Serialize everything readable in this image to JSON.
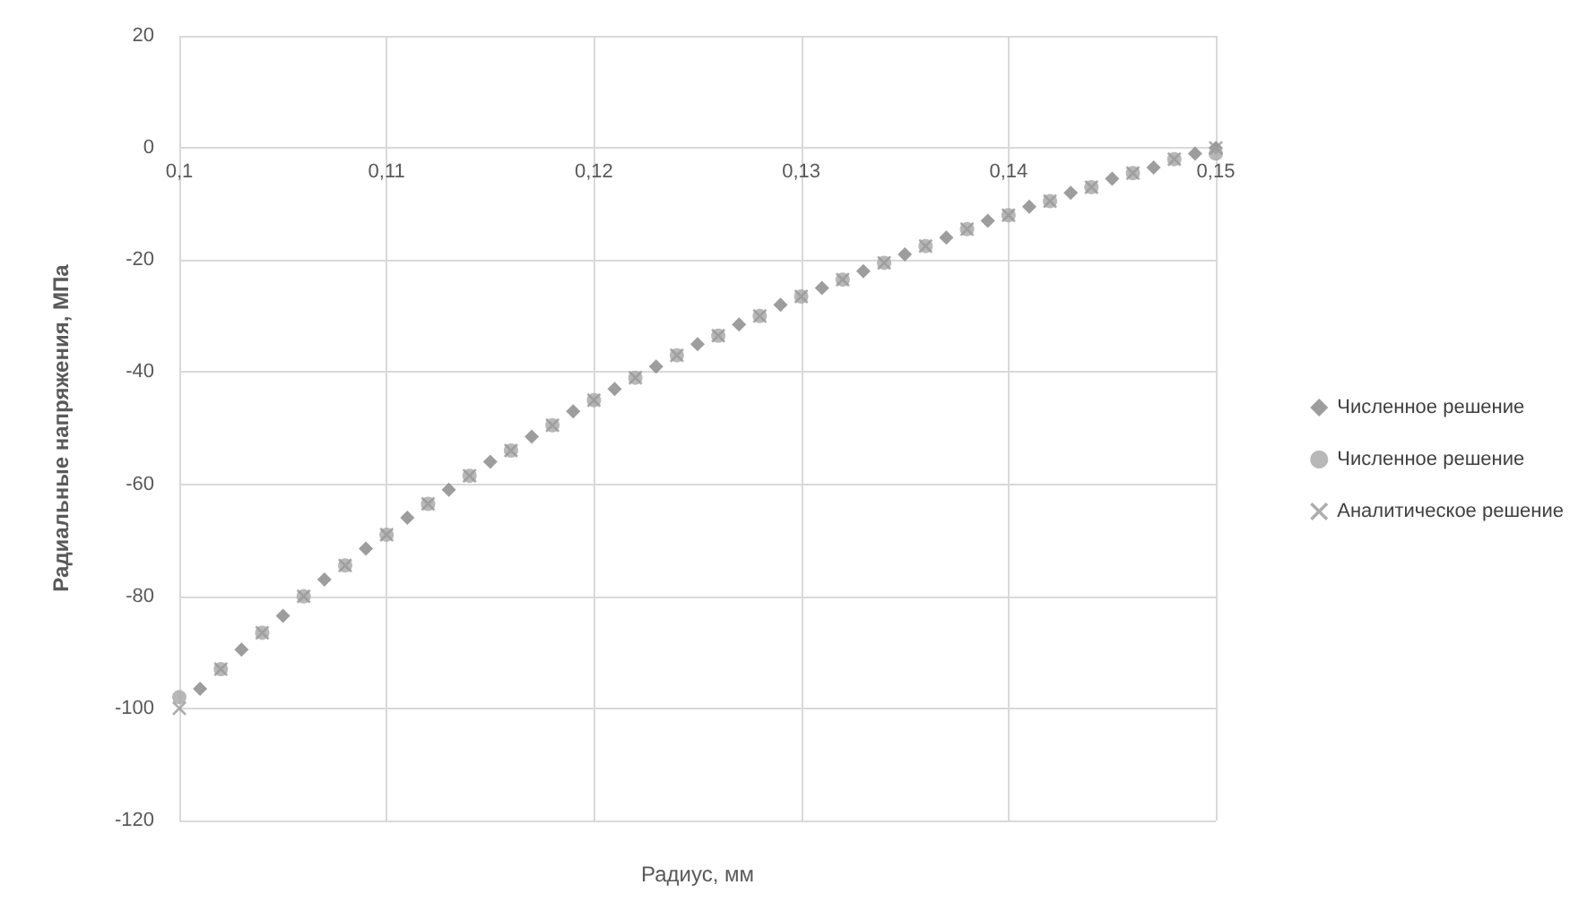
{
  "chart_data": {
    "type": "scatter",
    "xlabel": "Радиус, мм",
    "ylabel": "Радиальные напряжения, МПа",
    "xlim": [
      0.1,
      0.15
    ],
    "xticks": [
      {
        "value": 0.1,
        "label": "0,1"
      },
      {
        "value": 0.11,
        "label": "0,11"
      },
      {
        "value": 0.12,
        "label": "0,12"
      },
      {
        "value": 0.13,
        "label": "0,13"
      },
      {
        "value": 0.14,
        "label": "0,14"
      },
      {
        "value": 0.15,
        "label": "0,15"
      }
    ],
    "ylim": [
      -120,
      20
    ],
    "yticks": [
      -120,
      -100,
      -80,
      -60,
      -40,
      -20,
      0,
      20
    ],
    "grid": true,
    "legend": "right",
    "series": [
      {
        "name": "Численное решение",
        "color": "#858585",
        "marker": "diamond",
        "x": [
          0.101,
          0.103,
          0.105,
          0.107,
          0.109,
          0.111,
          0.113,
          0.115,
          0.117,
          0.119,
          0.121,
          0.123,
          0.125,
          0.127,
          0.129,
          0.131,
          0.133,
          0.135,
          0.137,
          0.139,
          0.141,
          0.143,
          0.145,
          0.147,
          0.149,
          0.15
        ],
        "values": [
          -96.5,
          -89.5,
          -83.5,
          -77,
          -71.5,
          -66,
          -61,
          -56,
          -51.5,
          -47,
          -43,
          -39,
          -35,
          -31.5,
          -28,
          -25,
          -22,
          -19,
          -16,
          -13,
          -10.5,
          -8,
          -5.5,
          -3.5,
          -1,
          0
        ]
      },
      {
        "name": "Численное решение",
        "color": "#a6a6a6",
        "marker": "circle",
        "x": [
          0.1,
          0.102,
          0.104,
          0.106,
          0.108,
          0.11,
          0.112,
          0.114,
          0.116,
          0.118,
          0.12,
          0.122,
          0.124,
          0.126,
          0.128,
          0.13,
          0.132,
          0.134,
          0.136,
          0.138,
          0.14,
          0.142,
          0.144,
          0.146,
          0.148,
          0.15
        ],
        "values": [
          -98,
          -93,
          -86.5,
          -80,
          -74.5,
          -69,
          -63.5,
          -58.5,
          -54,
          -49.5,
          -45,
          -41,
          -37,
          -33.5,
          -30,
          -26.5,
          -23.5,
          -20.5,
          -17.5,
          -14.5,
          -12,
          -9.5,
          -7,
          -4.5,
          -2,
          -1
        ]
      },
      {
        "name": "Аналитическое решение",
        "color": "#999999",
        "marker": "cross",
        "x": [
          0.1,
          0.102,
          0.104,
          0.106,
          0.108,
          0.11,
          0.112,
          0.114,
          0.116,
          0.118,
          0.12,
          0.122,
          0.124,
          0.126,
          0.128,
          0.13,
          0.132,
          0.134,
          0.136,
          0.138,
          0.14,
          0.142,
          0.144,
          0.146,
          0.148,
          0.15
        ],
        "values": [
          -100,
          -93,
          -86.5,
          -80,
          -74.5,
          -69,
          -63.5,
          -58.5,
          -54,
          -49.5,
          -45,
          -41,
          -37,
          -33.5,
          -30,
          -26.5,
          -23.5,
          -20.5,
          -17.5,
          -14.5,
          -12,
          -9.5,
          -7,
          -4.5,
          -2,
          0
        ]
      }
    ]
  }
}
